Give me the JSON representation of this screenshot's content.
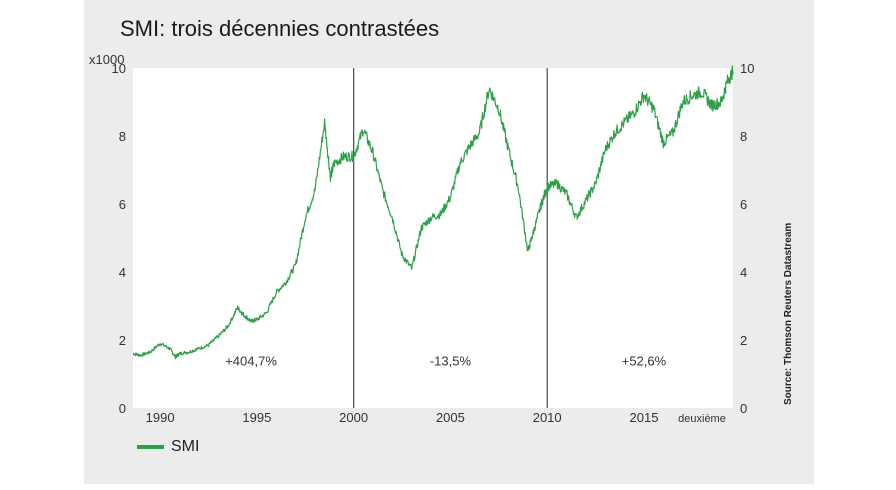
{
  "title": "SMI: trois décennies contrastées",
  "colors": {
    "series": "#2e9e47",
    "panel": "#ececec",
    "plot": "#ffffff",
    "divider": "#555555"
  },
  "chart_data": {
    "type": "line",
    "y_multiplier_label": "x1000",
    "ylim": [
      0,
      10
    ],
    "xlim": [
      1988.6,
      2019.6
    ],
    "y_ticks": [
      "0",
      "2",
      "4",
      "6",
      "8",
      "10"
    ],
    "x_ticks": [
      {
        "label": "1990",
        "value": 1990
      },
      {
        "label": "1995",
        "value": 1995
      },
      {
        "label": "2000",
        "value": 2000
      },
      {
        "label": "2005",
        "value": 2005
      },
      {
        "label": "2010",
        "value": 2010
      },
      {
        "label": "2015",
        "value": 2015
      }
    ],
    "x_extra_label": "deuxième",
    "dividers": [
      2000,
      2010
    ],
    "annotations": [
      "+404,7%",
      "-13,5%",
      "+52,6%"
    ],
    "series": [
      {
        "name": "SMI",
        "x": [
          1988.6,
          1989.0,
          1989.5,
          1990.0,
          1990.5,
          1990.8,
          1991.0,
          1991.5,
          1992.0,
          1992.5,
          1993.0,
          1993.5,
          1994.0,
          1994.3,
          1994.7,
          1995.0,
          1995.5,
          1996.0,
          1996.5,
          1997.0,
          1997.5,
          1998.0,
          1998.5,
          1998.8,
          1999.0,
          1999.5,
          2000.0,
          2000.5,
          2001.0,
          2001.5,
          2002.0,
          2002.5,
          2003.0,
          2003.5,
          2004.0,
          2004.5,
          2005.0,
          2005.5,
          2006.0,
          2006.5,
          2007.0,
          2007.5,
          2008.0,
          2008.5,
          2009.0,
          2009.3,
          2009.7,
          2010.0,
          2010.5,
          2011.0,
          2011.5,
          2012.0,
          2012.5,
          2013.0,
          2013.5,
          2014.0,
          2014.5,
          2015.0,
          2015.5,
          2016.0,
          2016.5,
          2017.0,
          2017.5,
          2018.0,
          2018.5,
          2019.0,
          2019.3,
          2019.6
        ],
        "values": [
          1.6,
          1.55,
          1.65,
          1.9,
          1.75,
          1.5,
          1.6,
          1.65,
          1.75,
          1.85,
          2.1,
          2.4,
          2.95,
          2.75,
          2.55,
          2.6,
          2.8,
          3.4,
          3.7,
          4.2,
          5.6,
          6.4,
          8.4,
          6.8,
          7.2,
          7.4,
          7.4,
          8.2,
          7.5,
          6.4,
          5.6,
          4.5,
          4.1,
          5.3,
          5.6,
          5.7,
          6.2,
          7.2,
          7.7,
          8.1,
          9.4,
          8.8,
          7.6,
          6.5,
          4.6,
          5.2,
          6.0,
          6.5,
          6.6,
          6.3,
          5.6,
          6.1,
          6.6,
          7.6,
          8.1,
          8.4,
          8.7,
          9.2,
          8.8,
          7.8,
          8.1,
          9.0,
          9.2,
          9.3,
          8.9,
          9.0,
          9.6,
          9.9
        ]
      }
    ],
    "source": "Source: Thomson Reuters Datastream",
    "legend_position": "bottom-left",
    "grid": false
  }
}
